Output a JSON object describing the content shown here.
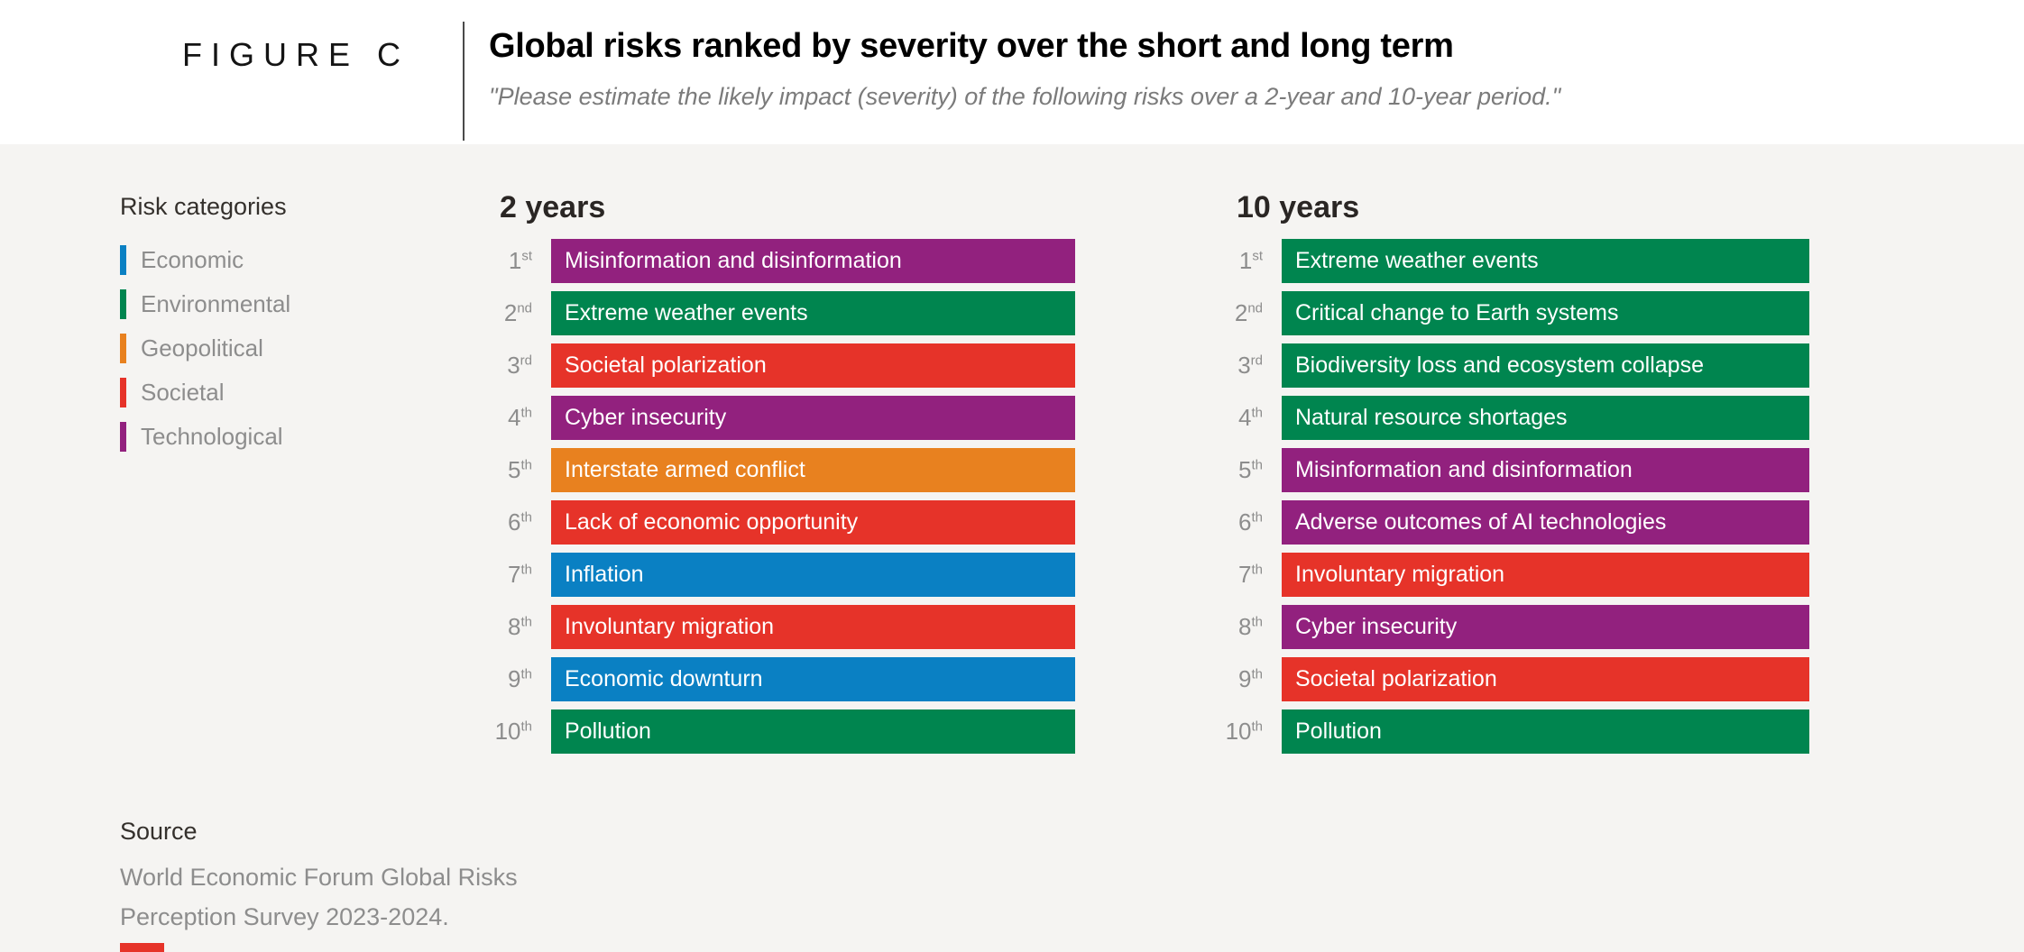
{
  "figure_label": "FIGURE C",
  "title": "Global risks ranked by severity over the short and long term",
  "subtitle": "\"Please estimate the likely impact (severity) of the following risks over a 2-year and 10-year period.\"",
  "colors": {
    "background": "#F5F4F2",
    "header_background": "#FFFFFF",
    "muted_text": "#8D8D8D",
    "dark_text": "#34302C"
  },
  "legend": {
    "title": "Risk categories",
    "items": [
      {
        "label": "Economic",
        "color": "#0A80C3"
      },
      {
        "label": "Environmental",
        "color": "#00854F"
      },
      {
        "label": "Geopolitical",
        "color": "#E8811F"
      },
      {
        "label": "Societal",
        "color": "#E63329"
      },
      {
        "label": "Technological",
        "color": "#92217E"
      }
    ]
  },
  "chart_data": {
    "type": "table",
    "title": "Global risks ranked by severity over the short and long term",
    "legend_position": "left",
    "category_colors": {
      "Economic": "#0A80C3",
      "Environmental": "#00854F",
      "Geopolitical": "#E8811F",
      "Societal": "#E63329",
      "Technological": "#92217E"
    },
    "columns": [
      {
        "title": "2 years",
        "rows": [
          {
            "rank": "1",
            "ordinal": "st",
            "label": "Misinformation and disinformation",
            "category": "Technological"
          },
          {
            "rank": "2",
            "ordinal": "nd",
            "label": "Extreme weather events",
            "category": "Environmental"
          },
          {
            "rank": "3",
            "ordinal": "rd",
            "label": "Societal polarization",
            "category": "Societal"
          },
          {
            "rank": "4",
            "ordinal": "th",
            "label": "Cyber insecurity",
            "category": "Technological"
          },
          {
            "rank": "5",
            "ordinal": "th",
            "label": "Interstate armed conflict",
            "category": "Geopolitical"
          },
          {
            "rank": "6",
            "ordinal": "th",
            "label": "Lack of economic opportunity",
            "category": "Societal"
          },
          {
            "rank": "7",
            "ordinal": "th",
            "label": "Inflation",
            "category": "Economic"
          },
          {
            "rank": "8",
            "ordinal": "th",
            "label": "Involuntary migration",
            "category": "Societal"
          },
          {
            "rank": "9",
            "ordinal": "th",
            "label": "Economic downturn",
            "category": "Economic"
          },
          {
            "rank": "10",
            "ordinal": "th",
            "label": "Pollution",
            "category": "Environmental"
          }
        ]
      },
      {
        "title": "10 years",
        "rows": [
          {
            "rank": "1",
            "ordinal": "st",
            "label": "Extreme weather events",
            "category": "Environmental"
          },
          {
            "rank": "2",
            "ordinal": "nd",
            "label": "Critical change to Earth systems",
            "category": "Environmental"
          },
          {
            "rank": "3",
            "ordinal": "rd",
            "label": "Biodiversity loss and ecosystem collapse",
            "category": "Environmental"
          },
          {
            "rank": "4",
            "ordinal": "th",
            "label": "Natural resource shortages",
            "category": "Environmental"
          },
          {
            "rank": "5",
            "ordinal": "th",
            "label": "Misinformation and disinformation",
            "category": "Technological"
          },
          {
            "rank": "6",
            "ordinal": "th",
            "label": "Adverse outcomes of AI technologies",
            "category": "Technological"
          },
          {
            "rank": "7",
            "ordinal": "th",
            "label": "Involuntary migration",
            "category": "Societal"
          },
          {
            "rank": "8",
            "ordinal": "th",
            "label": "Cyber insecurity",
            "category": "Technological"
          },
          {
            "rank": "9",
            "ordinal": "th",
            "label": "Societal polarization",
            "category": "Societal"
          },
          {
            "rank": "10",
            "ordinal": "th",
            "label": "Pollution",
            "category": "Environmental"
          }
        ]
      }
    ]
  },
  "source": {
    "title": "Source",
    "lines": [
      "World Economic Forum Global Risks",
      "Perception Survey 2023-2024."
    ]
  },
  "artifact_color": "#E63329"
}
